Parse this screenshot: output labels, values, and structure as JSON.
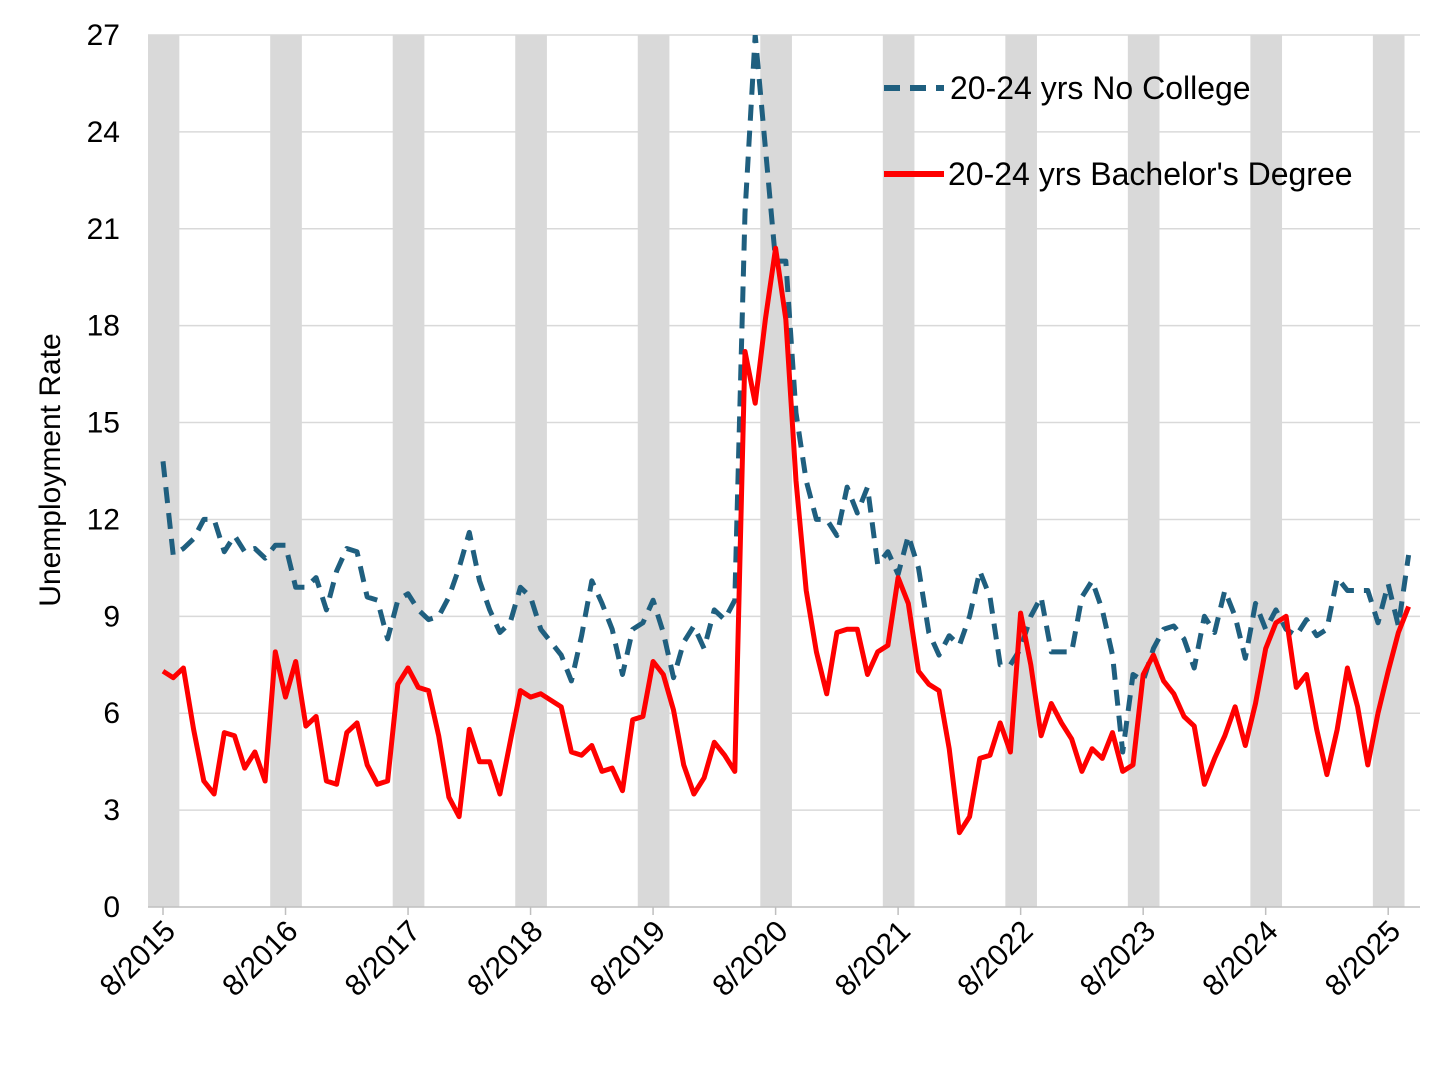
{
  "chart_data": {
    "type": "line",
    "xlabel": "",
    "ylabel": "Unemployment Rate",
    "ylim": [
      0,
      27
    ],
    "yticks": [
      0,
      3,
      6,
      9,
      12,
      15,
      18,
      21,
      24,
      27
    ],
    "grid": "horizontal",
    "legend_position": "top-right",
    "x_start": "8/2015",
    "x_tick_labels": [
      "8/2015",
      "8/2016",
      "8/2017",
      "8/2018",
      "8/2019",
      "8/2020",
      "8/2021",
      "8/2022",
      "8/2023",
      "8/2024",
      "8/2025"
    ],
    "shaded_months": [
      "Aug",
      "Sep",
      "Oct"
    ],
    "shade_color": "#d9d9d9",
    "series": [
      {
        "name": "20-24 yrs No College",
        "color": "#1f5f7f",
        "style": "dashed",
        "values": [
          13.8,
          10.9,
          11.1,
          11.4,
          12.0,
          12.0,
          11.0,
          11.5,
          11.0,
          11.1,
          10.8,
          11.2,
          11.2,
          9.9,
          9.9,
          10.2,
          9.2,
          10.4,
          11.1,
          11.0,
          9.6,
          9.5,
          8.3,
          9.5,
          9.7,
          9.2,
          8.9,
          9.0,
          9.6,
          10.5,
          11.6,
          10.1,
          9.2,
          8.5,
          8.8,
          9.9,
          9.6,
          8.6,
          8.2,
          7.8,
          7.0,
          8.4,
          10.1,
          9.4,
          8.6,
          7.2,
          8.6,
          8.8,
          9.5,
          8.5,
          7.1,
          8.2,
          8.7,
          8.0,
          9.2,
          8.9,
          9.5,
          21.5,
          27.0,
          23.5,
          20.0,
          20.0,
          15.3,
          13.2,
          12.0,
          12.0,
          11.5,
          13.0,
          12.2,
          13.0,
          10.6,
          11.0,
          10.3,
          11.5,
          10.5,
          8.5,
          7.8,
          8.4,
          8.1,
          9.0,
          10.4,
          9.6,
          7.5,
          7.5,
          8.0,
          9.0,
          9.6,
          7.9,
          7.9,
          7.9,
          9.6,
          10.1,
          9.2,
          7.8,
          4.8,
          7.2,
          7.0,
          8.0,
          8.6,
          8.7,
          8.3,
          7.4,
          9.0,
          8.5,
          9.8,
          9.0,
          7.7,
          9.4,
          8.6,
          9.2,
          8.6,
          8.4,
          8.9,
          8.4,
          8.6,
          10.2,
          9.8,
          9.8,
          9.8,
          8.8,
          10.0,
          8.7,
          10.9
        ]
      },
      {
        "name": "20-24 yrs Bachelor's Degree",
        "color": "#ff0000",
        "style": "solid",
        "values": [
          7.3,
          7.1,
          7.4,
          5.5,
          3.9,
          3.5,
          5.4,
          5.3,
          4.3,
          4.8,
          3.9,
          7.9,
          6.5,
          7.6,
          5.6,
          5.9,
          3.9,
          3.8,
          5.4,
          5.7,
          4.4,
          3.8,
          3.9,
          6.9,
          7.4,
          6.8,
          6.7,
          5.3,
          3.4,
          2.8,
          5.5,
          4.5,
          4.5,
          3.5,
          5.1,
          6.7,
          6.5,
          6.6,
          6.4,
          6.2,
          4.8,
          4.7,
          5.0,
          4.2,
          4.3,
          3.6,
          5.8,
          5.9,
          7.6,
          7.2,
          6.1,
          4.4,
          3.5,
          4.0,
          5.1,
          4.7,
          4.2,
          17.2,
          15.6,
          18.2,
          20.4,
          18.2,
          13.2,
          9.8,
          7.9,
          6.6,
          8.5,
          8.6,
          8.6,
          7.2,
          7.9,
          8.1,
          10.2,
          9.4,
          7.3,
          6.9,
          6.7,
          4.9,
          2.3,
          2.8,
          4.6,
          4.7,
          5.7,
          4.8,
          9.1,
          7.5,
          5.3,
          6.3,
          5.7,
          5.2,
          4.2,
          4.9,
          4.6,
          5.4,
          4.2,
          4.4,
          7.2,
          7.8,
          7.0,
          6.6,
          5.9,
          5.6,
          3.8,
          4.6,
          5.3,
          6.2,
          5.0,
          6.3,
          8.0,
          8.8,
          9.0,
          6.8,
          7.2,
          5.5,
          4.1,
          5.5,
          7.4,
          6.2,
          4.4,
          6.0,
          7.3,
          8.5,
          9.3
        ]
      }
    ]
  }
}
